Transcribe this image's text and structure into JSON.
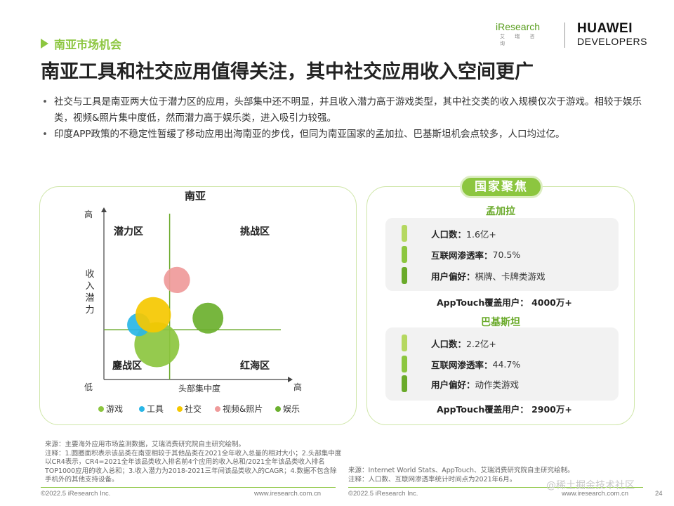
{
  "section": "南亚市场机会",
  "logos": {
    "iresearch": "iResearch",
    "iresearch_sub": "艾 瑞 咨 询",
    "huawei_l1": "HUAWEI",
    "huawei_l2": "DEVELOPERS"
  },
  "title": "南亚工具和社交应用值得关注，其中社交应用收入空间更广",
  "bullets": [
    "社交与工具是南亚两大位于潜力区的应用，头部集中还不明显，并且收入潜力高于游戏类型，其中社交类的收入规模仅次于游戏。相较于娱乐类，视频&照片集中度低，然而潜力高于娱乐类，进入吸引力较强。",
    "印度APP政策的不稳定性暂缓了移动应用出海南亚的步伐，但同为南亚国家的孟加拉、巴基斯坦机会点较多，人口均过亿。"
  ],
  "chart_data": {
    "type": "scatter",
    "title": "南亚",
    "xlabel": "头部集中度",
    "ylabel": "收入潜力",
    "x_low": "低",
    "x_high": "高",
    "y_high": "高",
    "quadrants": {
      "top_left": "潜力区",
      "top_right": "挑战区",
      "bottom_left": "鏖战区",
      "bottom_right": "红海区"
    },
    "xlim": [
      0,
      100
    ],
    "ylim": [
      0,
      100
    ],
    "divider_x": 36,
    "divider_y": 30,
    "legend_position": "bottom",
    "series": [
      {
        "name": "游戏",
        "color": "#8cc63f",
        "x": 29,
        "y": 21,
        "size": 1.0
      },
      {
        "name": "工具",
        "color": "#29b6e6",
        "x": 19,
        "y": 33,
        "size": 0.26
      },
      {
        "name": "社交",
        "color": "#f5c800",
        "x": 27,
        "y": 39,
        "size": 0.62
      },
      {
        "name": "视频&照片",
        "color": "#ef9a9a",
        "x": 40,
        "y": 60,
        "size": 0.34
      },
      {
        "name": "娱乐",
        "color": "#6bb02e",
        "x": 57,
        "y": 37,
        "size": 0.47
      }
    ]
  },
  "focus": {
    "title": "国家聚焦",
    "countries": [
      {
        "name": "孟加拉",
        "stats": [
          {
            "label": "人口数：",
            "value": "1.6亿+"
          },
          {
            "label": "互联网渗透率：",
            "value": "70.5%"
          },
          {
            "label": "用户偏好：",
            "value": "棋牌、卡牌类游戏"
          }
        ],
        "cover_label": "AppTouch覆盖用户：",
        "cover_value": "4000万+"
      },
      {
        "name": "巴基斯坦",
        "stats": [
          {
            "label": "人口数：",
            "value": "2.2亿+"
          },
          {
            "label": "互联网渗透率：",
            "value": "44.7%"
          },
          {
            "label": "用户偏好：",
            "value": "动作类游戏"
          }
        ],
        "cover_label": "AppTouch覆盖用户：",
        "cover_value": "2900万+"
      }
    ],
    "stat_colors": [
      "#b5d860",
      "#8cc63f",
      "#6aaa2a"
    ]
  },
  "notes_left": "来源：主要海外应用市场监测数据，艾瑞消费研究院自主研究绘制。\n注释：1.圆圈面积表示该品类在南亚相较于其他品类在2021全年收入总量的相对大小；2.头部集中度以CR4表示，CR4=2021全年该品类收入排名前4个应用的收入总和/2021全年该品类收入排名TOP1000应用的收入总和；3.收入潜力为2018-2021三年间该品类收入的CAGR；4.数据不包含除手机外的其他支持设备。",
  "notes_right": "来源：Internet World Stats、AppTouch、艾瑞消费研究院自主研究绘制。\n注释：人口数、互联网渗透率统计时间点为2021年6月。",
  "footer": {
    "copyright_left": "©2022.5 iResearch Inc.",
    "site_left": "www.iresearch.com.cn",
    "copyright_right": "©2022.5 iResearch Inc.",
    "site_right": "www.iresearch.com.cn",
    "page": "24"
  },
  "watermark": "@稀土掘金技术社区"
}
